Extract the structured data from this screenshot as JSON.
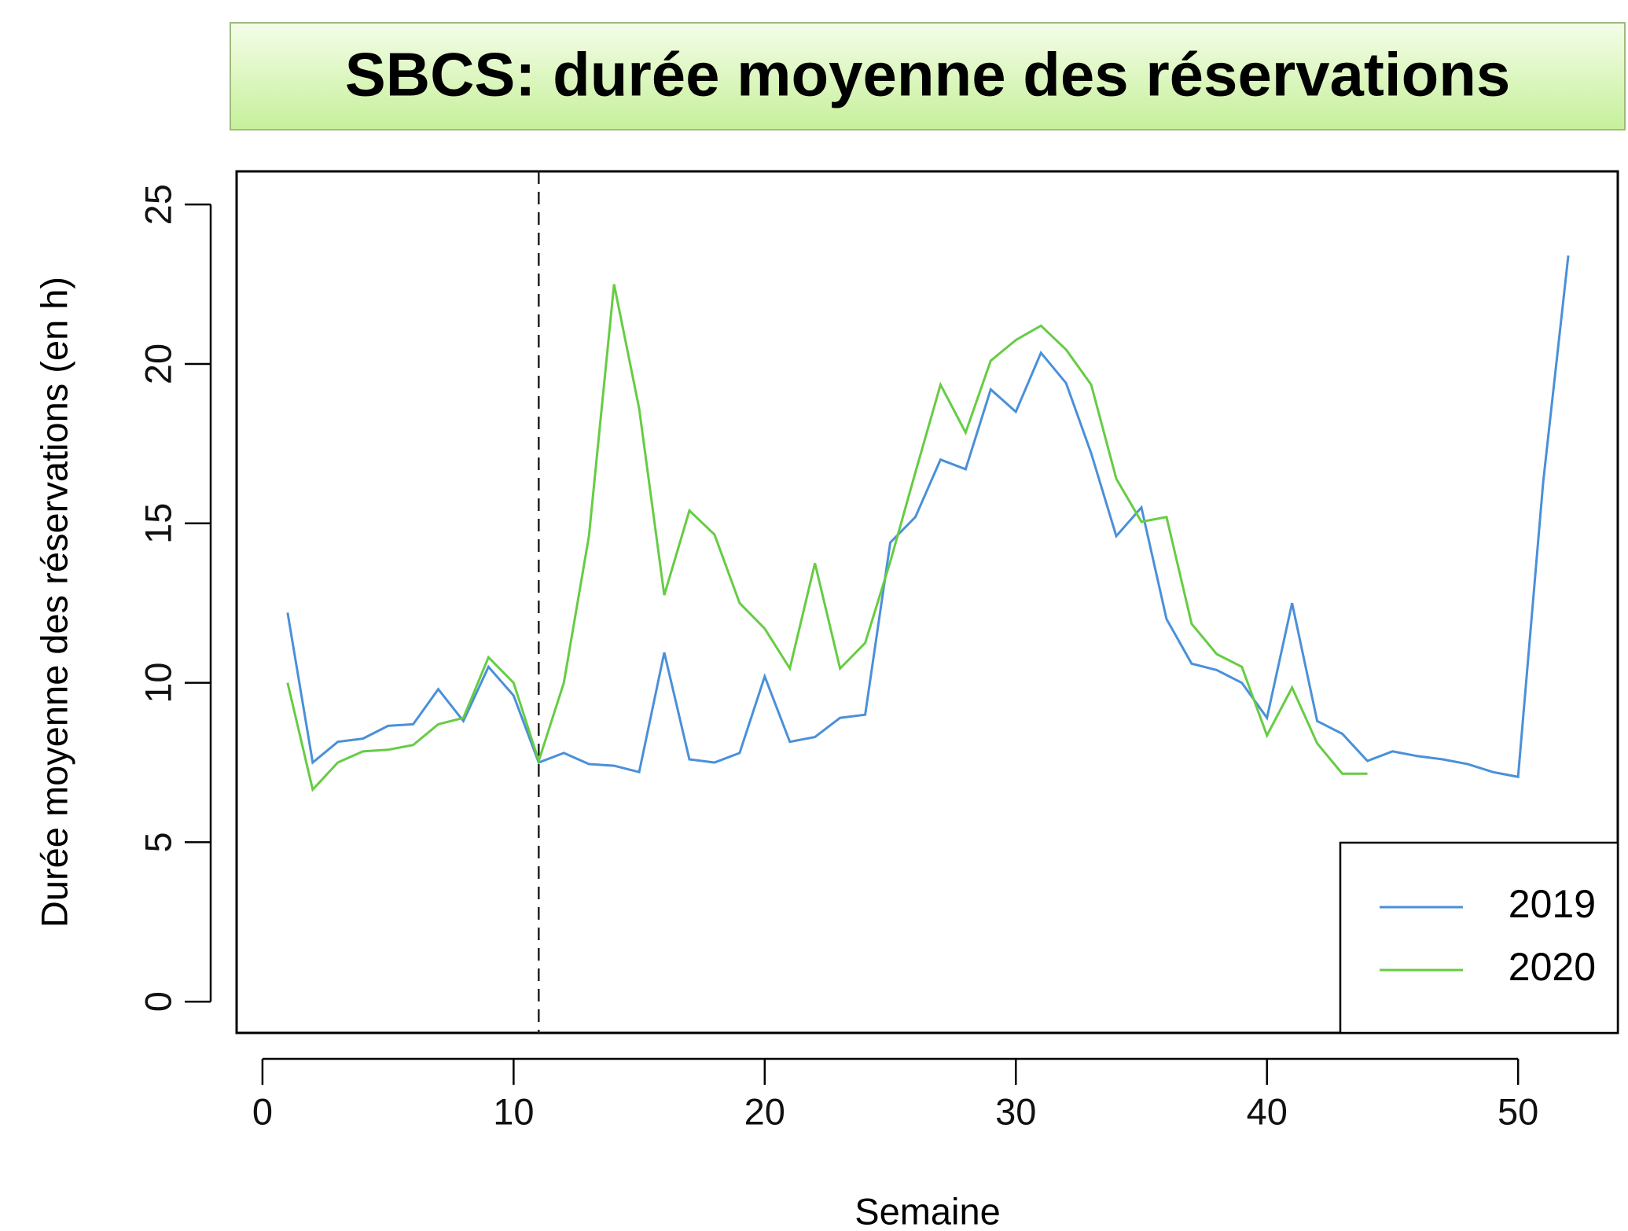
{
  "chart_data": {
    "type": "line",
    "title": "SBCS:  durée moyenne des réservations",
    "x_label": "Semaine",
    "y_label": "Durée moyenne des réservations (en h)",
    "xlim": [
      -1.03,
      53.97
    ],
    "ylim": [
      -0.98,
      26.04
    ],
    "xticks": [
      0,
      10,
      20,
      30,
      40,
      50
    ],
    "yticks": [
      0,
      5,
      10,
      15,
      20,
      25
    ],
    "vline": 11,
    "legend_position": "bottom-right",
    "series": [
      {
        "name": "2019",
        "color": "#4a90d9",
        "x": [
          1,
          2,
          3,
          4,
          5,
          6,
          7,
          8,
          9,
          10,
          11,
          12,
          13,
          14,
          15,
          16,
          17,
          18,
          19,
          20,
          21,
          22,
          23,
          24,
          25,
          26,
          27,
          28,
          29,
          30,
          31,
          32,
          33,
          34,
          35,
          36,
          37,
          38,
          39,
          40,
          41,
          42,
          43,
          44,
          45,
          46,
          47,
          48,
          49,
          50,
          51,
          52
        ],
        "values": [
          12.2,
          7.5,
          8.15,
          8.25,
          8.65,
          8.7,
          9.8,
          8.8,
          10.5,
          9.6,
          7.5,
          7.8,
          7.45,
          7.4,
          7.2,
          10.95,
          7.6,
          7.5,
          7.8,
          10.2,
          8.15,
          8.3,
          8.9,
          9.0,
          14.4,
          15.2,
          17.0,
          16.7,
          19.2,
          18.5,
          20.35,
          19.4,
          17.2,
          14.6,
          15.5,
          12.0,
          10.6,
          10.4,
          10.0,
          8.9,
          12.5,
          8.8,
          8.4,
          7.55,
          7.85,
          7.7,
          7.6,
          7.45,
          7.2,
          7.05,
          16.3,
          23.4
        ]
      },
      {
        "name": "2020",
        "color": "#66cc44",
        "x": [
          1,
          2,
          3,
          4,
          5,
          6,
          7,
          8,
          9,
          10,
          11,
          12,
          13,
          14,
          15,
          16,
          17,
          18,
          19,
          20,
          21,
          22,
          23,
          24,
          25,
          26,
          27,
          28,
          29,
          30,
          31,
          32,
          33,
          34,
          35,
          36,
          37,
          38,
          39,
          40,
          41,
          42,
          43,
          44
        ],
        "values": [
          10.0,
          6.65,
          7.5,
          7.85,
          7.9,
          8.05,
          8.7,
          8.9,
          10.8,
          10.0,
          7.55,
          10.0,
          14.6,
          22.5,
          18.6,
          12.75,
          15.4,
          14.65,
          12.5,
          11.7,
          10.45,
          13.75,
          10.45,
          11.25,
          13.8,
          16.6,
          19.35,
          17.85,
          20.1,
          20.75,
          21.2,
          20.45,
          19.35,
          16.4,
          15.05,
          15.2,
          11.85,
          10.9,
          10.5,
          8.35,
          9.85,
          8.1,
          7.15,
          7.15
        ]
      }
    ]
  }
}
